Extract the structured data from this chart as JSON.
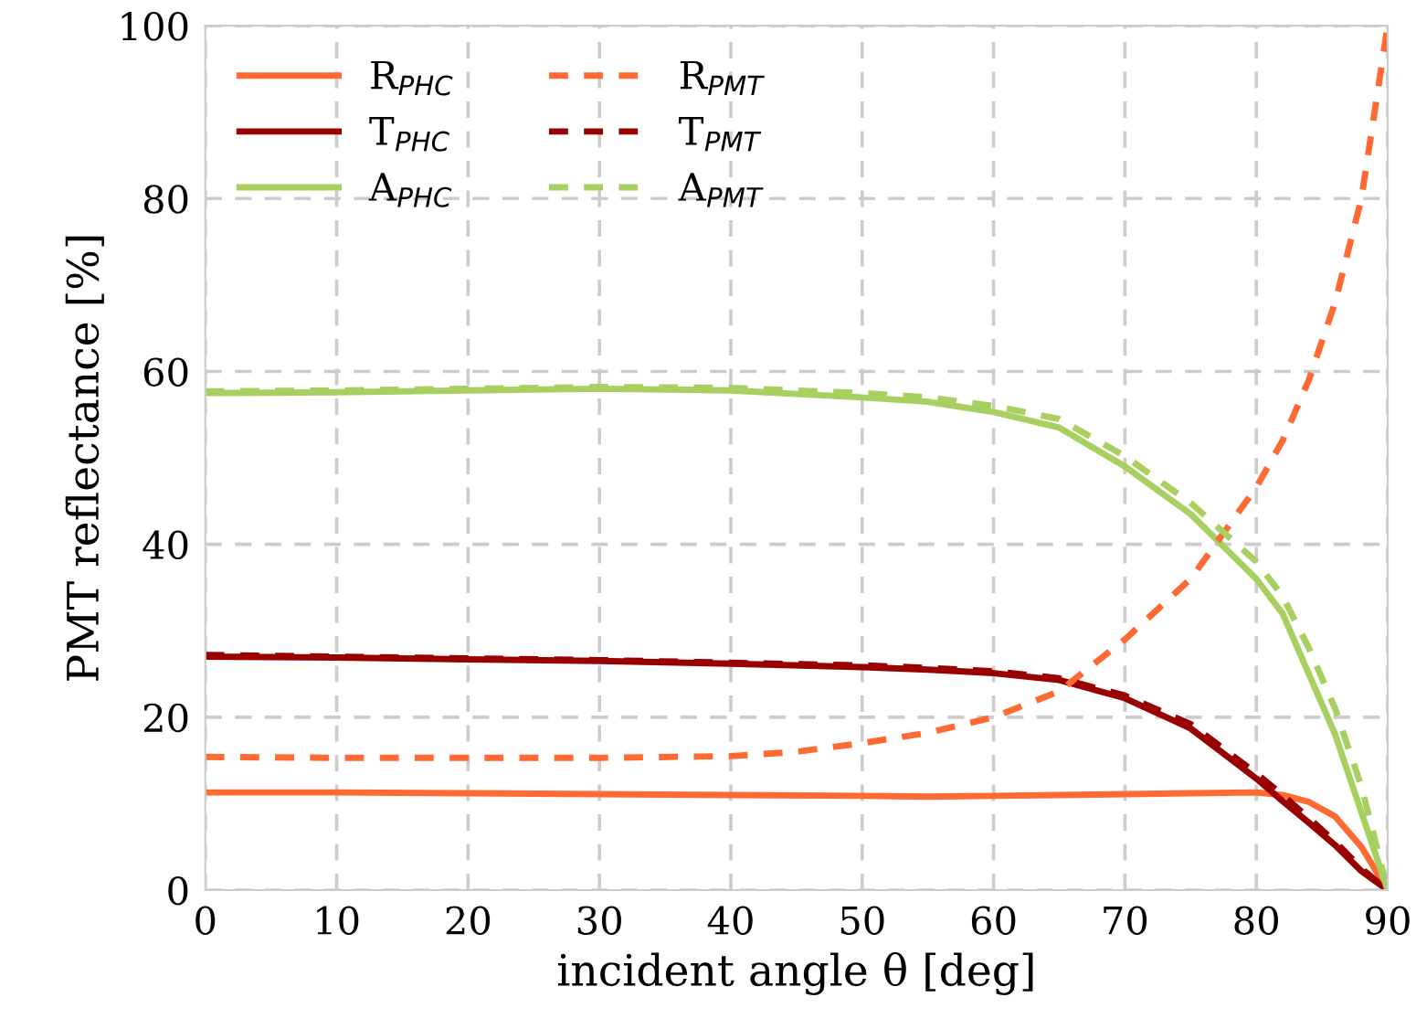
{
  "chart_data": {
    "type": "line",
    "xlabel": "incident angle θ [deg]",
    "ylabel": "PMT reflectance [%]",
    "xlim": [
      0,
      90
    ],
    "ylim": [
      0,
      100
    ],
    "xticks": [
      0,
      10,
      20,
      30,
      40,
      50,
      60,
      70,
      80,
      90
    ],
    "yticks": [
      0,
      20,
      40,
      60,
      80,
      100
    ],
    "grid": true,
    "legend": "top left",
    "marker": "none",
    "series": [
      {
        "name": "R$_{PHC}$",
        "color": "#ff6a33",
        "line_style": "solid",
        "x": [
          0,
          10,
          20,
          30,
          40,
          50,
          55,
          60,
          65,
          70,
          75,
          80,
          82,
          84,
          86,
          88,
          90
        ],
        "values": [
          11.3,
          11.3,
          11.2,
          11.1,
          11,
          10.9,
          10.8,
          10.9,
          11,
          11.1,
          11.2,
          11.3,
          11,
          10.2,
          8.5,
          5,
          0
        ]
      },
      {
        "name": "T$_{PHC}$",
        "color": "#990000",
        "line_style": "solid",
        "x": [
          0,
          10,
          20,
          30,
          40,
          50,
          55,
          60,
          65,
          70,
          75,
          80,
          82,
          84,
          86,
          88,
          90
        ],
        "values": [
          27,
          26.9,
          26.7,
          26.5,
          26.2,
          25.8,
          25.5,
          25.1,
          24.3,
          22.2,
          18.7,
          12.9,
          10.3,
          7.8,
          5.2,
          2.2,
          0
        ]
      },
      {
        "name": "A$_{PHC}$",
        "color": "#a8d060",
        "line_style": "solid",
        "x": [
          0,
          10,
          20,
          30,
          40,
          50,
          55,
          60,
          65,
          70,
          75,
          80,
          82,
          84,
          86,
          88,
          90
        ],
        "values": [
          57.5,
          57.6,
          57.8,
          58,
          57.8,
          57,
          56.5,
          55.3,
          53.5,
          49,
          43.5,
          36,
          32,
          25,
          18,
          9,
          0
        ]
      },
      {
        "name": "R$_{PMT}$",
        "color": "#ff6a33",
        "line_style": "dashed",
        "x": [
          0,
          10,
          20,
          30,
          40,
          45,
          50,
          55,
          60,
          65,
          70,
          75,
          80,
          82,
          84,
          86,
          88,
          90
        ],
        "values": [
          15.4,
          15.3,
          15.3,
          15.3,
          15.5,
          16,
          17,
          18.2,
          20,
          23,
          29,
          36,
          46.6,
          52,
          59,
          68,
          80,
          100
        ]
      },
      {
        "name": "T$_{PMT}$",
        "color": "#990000",
        "line_style": "dashed",
        "x": [
          0,
          10,
          20,
          30,
          40,
          50,
          55,
          60,
          65,
          70,
          75,
          80,
          82,
          84,
          86,
          88,
          90
        ],
        "values": [
          27.2,
          27,
          26.8,
          26.6,
          26.3,
          26,
          25.7,
          25.3,
          24.5,
          22.5,
          19.2,
          13.5,
          11,
          8.3,
          5.6,
          2.5,
          0
        ]
      },
      {
        "name": "A$_{PMT}$",
        "color": "#a8d060",
        "line_style": "dashed",
        "x": [
          0,
          10,
          20,
          30,
          40,
          50,
          55,
          60,
          65,
          70,
          75,
          80,
          82,
          84,
          86,
          88,
          90
        ],
        "values": [
          57.7,
          57.8,
          58,
          58.2,
          58.1,
          57.5,
          57,
          56,
          54.5,
          50.2,
          44.8,
          38,
          34,
          28,
          21,
          12,
          0
        ]
      }
    ]
  }
}
